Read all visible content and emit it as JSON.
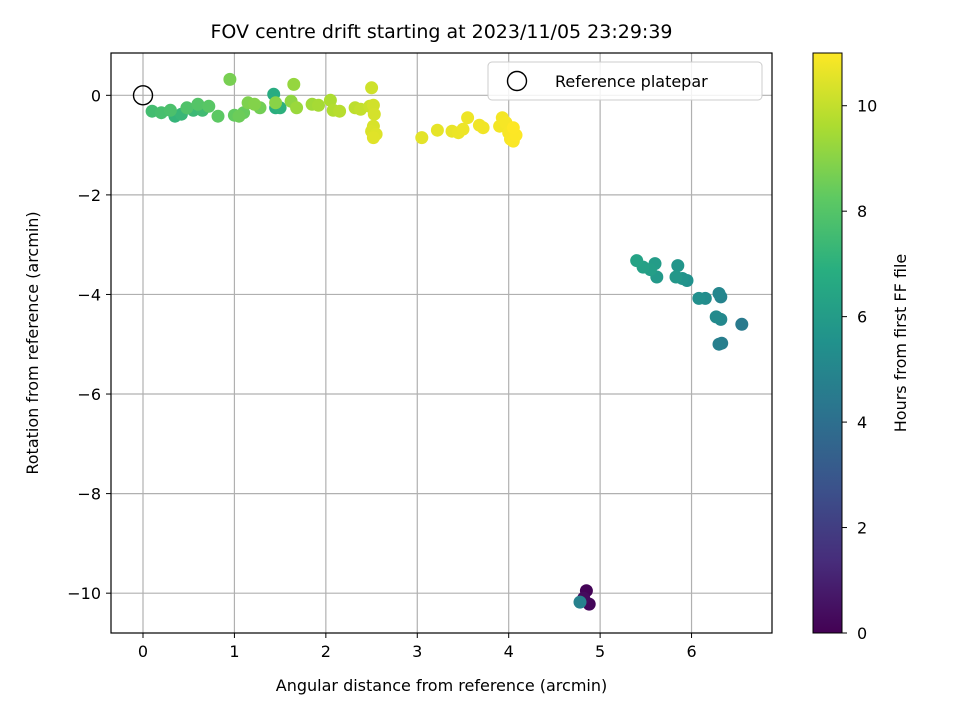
{
  "chart_data": {
    "type": "scatter",
    "title": "FOV centre drift starting at 2023/11/05 23:29:39",
    "xlabel": "Angular distance from reference (arcmin)",
    "ylabel": "Rotation from reference (arcmin)",
    "xlim": [
      -0.35,
      6.88
    ],
    "ylim": [
      -10.8,
      0.85
    ],
    "xticks": [
      0,
      1,
      2,
      3,
      4,
      5,
      6
    ],
    "yticks": [
      0,
      -2,
      -4,
      -6,
      -8,
      -10
    ],
    "xtick_labels": [
      "0",
      "1",
      "2",
      "3",
      "4",
      "5",
      "6"
    ],
    "ytick_labels": [
      "0",
      "−2",
      "−4",
      "−6",
      "−8",
      "−10"
    ],
    "grid": true,
    "colormap": "viridis",
    "legend": {
      "position": "top-right",
      "label": "Reference platepar"
    },
    "reference_point": {
      "x": 0,
      "y": 0
    },
    "colorbar": {
      "label": "Hours from first FF file",
      "range": [
        0,
        11
      ],
      "ticks": [
        0,
        2,
        4,
        6,
        8,
        10
      ],
      "tick_labels": [
        "0",
        "2",
        "4",
        "6",
        "8",
        "10"
      ]
    },
    "points": [
      {
        "x": 4.85,
        "y": -9.95,
        "c": 0.1
      },
      {
        "x": 4.88,
        "y": -10.22,
        "c": 0.2
      },
      {
        "x": 4.82,
        "y": -10.1,
        "c": 0.3
      },
      {
        "x": 4.78,
        "y": -10.18,
        "c": 4.8
      },
      {
        "x": 6.55,
        "y": -4.6,
        "c": 4.5
      },
      {
        "x": 6.33,
        "y": -4.98,
        "c": 4.6
      },
      {
        "x": 6.3,
        "y": -5.0,
        "c": 4.7
      },
      {
        "x": 6.32,
        "y": -4.05,
        "c": 4.9
      },
      {
        "x": 6.3,
        "y": -3.98,
        "c": 5.0
      },
      {
        "x": 6.32,
        "y": -4.5,
        "c": 5.1
      },
      {
        "x": 6.27,
        "y": -4.45,
        "c": 5.2
      },
      {
        "x": 6.15,
        "y": -4.08,
        "c": 5.3
      },
      {
        "x": 6.08,
        "y": -4.08,
        "c": 5.4
      },
      {
        "x": 5.95,
        "y": -3.72,
        "c": 5.5
      },
      {
        "x": 5.9,
        "y": -3.68,
        "c": 5.6
      },
      {
        "x": 5.85,
        "y": -3.42,
        "c": 5.7
      },
      {
        "x": 5.83,
        "y": -3.65,
        "c": 5.8
      },
      {
        "x": 5.62,
        "y": -3.65,
        "c": 5.9
      },
      {
        "x": 5.6,
        "y": -3.38,
        "c": 6.0
      },
      {
        "x": 5.55,
        "y": -3.5,
        "c": 6.1
      },
      {
        "x": 5.47,
        "y": -3.45,
        "c": 6.2
      },
      {
        "x": 5.4,
        "y": -3.32,
        "c": 6.3
      },
      {
        "x": 1.43,
        "y": 0.02,
        "c": 6.8
      },
      {
        "x": 1.45,
        "y": -0.25,
        "c": 6.9
      },
      {
        "x": 1.5,
        "y": -0.25,
        "c": 7.0
      },
      {
        "x": 0.35,
        "y": -0.42,
        "c": 7.2
      },
      {
        "x": 0.42,
        "y": -0.38,
        "c": 7.3
      },
      {
        "x": 0.55,
        "y": -0.3,
        "c": 7.4
      },
      {
        "x": 0.65,
        "y": -0.3,
        "c": 7.5
      },
      {
        "x": 0.1,
        "y": -0.32,
        "c": 7.6
      },
      {
        "x": 0.2,
        "y": -0.35,
        "c": 7.7
      },
      {
        "x": 0.3,
        "y": -0.3,
        "c": 7.8
      },
      {
        "x": 0.48,
        "y": -0.25,
        "c": 7.9
      },
      {
        "x": 0.6,
        "y": -0.18,
        "c": 8.0
      },
      {
        "x": 0.72,
        "y": -0.22,
        "c": 8.1
      },
      {
        "x": 0.82,
        "y": -0.42,
        "c": 8.2
      },
      {
        "x": 1.0,
        "y": -0.4,
        "c": 8.3
      },
      {
        "x": 1.1,
        "y": -0.35,
        "c": 8.4
      },
      {
        "x": 1.05,
        "y": -0.42,
        "c": 8.5
      },
      {
        "x": 1.28,
        "y": -0.25,
        "c": 8.6
      },
      {
        "x": 0.95,
        "y": 0.32,
        "c": 8.7
      },
      {
        "x": 1.15,
        "y": -0.15,
        "c": 8.8
      },
      {
        "x": 1.22,
        "y": -0.18,
        "c": 8.9
      },
      {
        "x": 1.45,
        "y": -0.15,
        "c": 9.0
      },
      {
        "x": 1.62,
        "y": -0.12,
        "c": 9.1
      },
      {
        "x": 1.65,
        "y": 0.22,
        "c": 9.2
      },
      {
        "x": 1.68,
        "y": -0.25,
        "c": 9.3
      },
      {
        "x": 1.85,
        "y": -0.18,
        "c": 9.4
      },
      {
        "x": 1.92,
        "y": -0.2,
        "c": 9.5
      },
      {
        "x": 2.05,
        "y": -0.1,
        "c": 9.6
      },
      {
        "x": 2.08,
        "y": -0.3,
        "c": 9.7
      },
      {
        "x": 2.15,
        "y": -0.32,
        "c": 9.8
      },
      {
        "x": 2.32,
        "y": -0.25,
        "c": 9.9
      },
      {
        "x": 2.38,
        "y": -0.28,
        "c": 10.0
      },
      {
        "x": 2.48,
        "y": -0.22,
        "c": 10.1
      },
      {
        "x": 2.5,
        "y": 0.15,
        "c": 10.2
      },
      {
        "x": 2.52,
        "y": -0.2,
        "c": 10.25
      },
      {
        "x": 2.53,
        "y": -0.38,
        "c": 10.3
      },
      {
        "x": 2.52,
        "y": -0.62,
        "c": 10.35
      },
      {
        "x": 2.5,
        "y": -0.72,
        "c": 10.4
      },
      {
        "x": 2.55,
        "y": -0.78,
        "c": 10.45
      },
      {
        "x": 2.52,
        "y": -0.85,
        "c": 10.5
      },
      {
        "x": 3.05,
        "y": -0.85,
        "c": 10.55
      },
      {
        "x": 3.22,
        "y": -0.7,
        "c": 10.6
      },
      {
        "x": 3.38,
        "y": -0.72,
        "c": 10.65
      },
      {
        "x": 3.45,
        "y": -0.75,
        "c": 10.7
      },
      {
        "x": 3.5,
        "y": -0.68,
        "c": 10.72
      },
      {
        "x": 3.55,
        "y": -0.45,
        "c": 10.75
      },
      {
        "x": 3.68,
        "y": -0.6,
        "c": 10.78
      },
      {
        "x": 3.72,
        "y": -0.65,
        "c": 10.8
      },
      {
        "x": 3.9,
        "y": -0.62,
        "c": 10.82
      },
      {
        "x": 3.93,
        "y": -0.45,
        "c": 10.85
      },
      {
        "x": 3.97,
        "y": -0.55,
        "c": 10.88
      },
      {
        "x": 4.0,
        "y": -0.75,
        "c": 10.9
      },
      {
        "x": 4.02,
        "y": -0.88,
        "c": 10.92
      },
      {
        "x": 4.05,
        "y": -0.92,
        "c": 10.95
      },
      {
        "x": 4.08,
        "y": -0.8,
        "c": 10.98
      },
      {
        "x": 4.05,
        "y": -0.65,
        "c": 11.0
      }
    ]
  }
}
